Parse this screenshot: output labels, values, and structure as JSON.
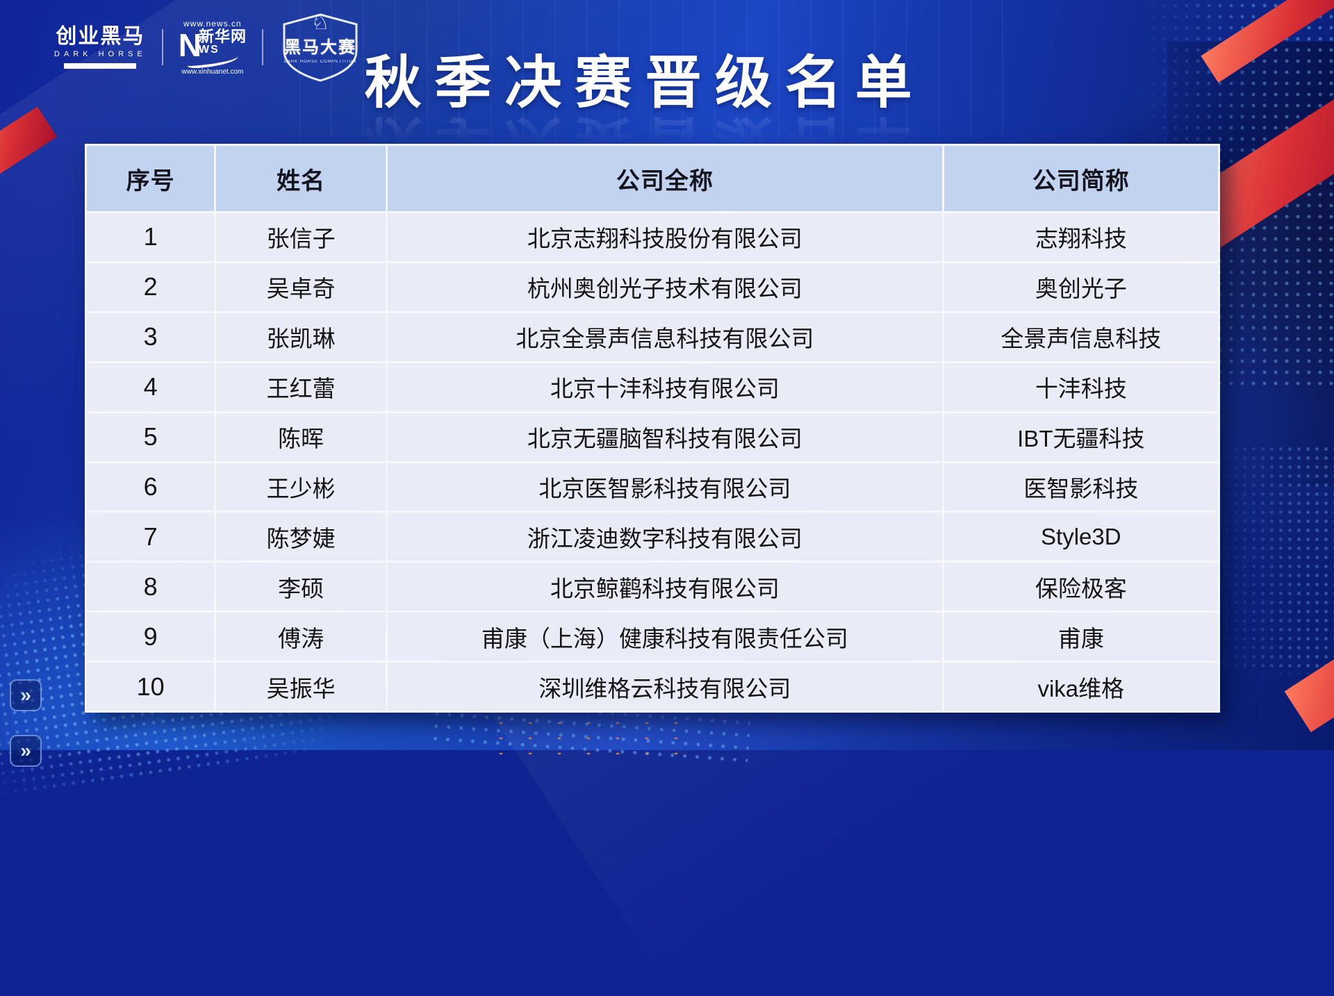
{
  "title": "秋季决赛晋级名单",
  "logos": {
    "separator": "",
    "dark_horse": {
      "cn": "创业黑马",
      "en": "DARK HORSE"
    },
    "xinhua": {
      "url_top": "www.news.cn",
      "initial": "N",
      "cn": "新华网",
      "ws": "WS",
      "url_bottom": "www.xinhuanet.com"
    },
    "badge": {
      "horse_icon": "♘",
      "cn": "黑马大赛",
      "en": "DARK HORSE COMPETITION"
    }
  },
  "table": {
    "headers": [
      "序号",
      "姓名",
      "公司全称",
      "公司简称"
    ],
    "rows": [
      {
        "no": "1",
        "name": "张信子",
        "company": "北京志翔科技股份有限公司",
        "short": "志翔科技"
      },
      {
        "no": "2",
        "name": "吴卓奇",
        "company": "杭州奥创光子技术有限公司",
        "short": "奥创光子"
      },
      {
        "no": "3",
        "name": "张凯琳",
        "company": "北京全景声信息科技有限公司",
        "short": "全景声信息科技"
      },
      {
        "no": "4",
        "name": "王红蕾",
        "company": "北京十沣科技有限公司",
        "short": "十沣科技"
      },
      {
        "no": "5",
        "name": "陈晖",
        "company": "北京无疆脑智科技有限公司",
        "short": "IBT无疆科技"
      },
      {
        "no": "6",
        "name": "王少彬",
        "company": "北京医智影科技有限公司",
        "short": "医智影科技"
      },
      {
        "no": "7",
        "name": "陈梦婕",
        "company": "浙江凌迪数字科技有限公司",
        "short": "Style3D"
      },
      {
        "no": "8",
        "name": "李硕",
        "company": "北京鲸鹳科技有限公司",
        "short": "保险极客"
      },
      {
        "no": "9",
        "name": "傅涛",
        "company": "甫康（上海）健康科技有限责任公司",
        "short": "甫康"
      },
      {
        "no": "10",
        "name": "吴振华",
        "company": "深圳维格云科技有限公司",
        "short": "vika维格"
      }
    ]
  },
  "chevron": "»",
  "colors": {
    "header_bg": "#c1d3ee",
    "row_bg": "#e9ecf7",
    "base_blue": "#1c46c4",
    "deep_blue": "#0a1b6e",
    "accent_red": "#d92f35",
    "dot_cyan": "#78c3ff"
  }
}
